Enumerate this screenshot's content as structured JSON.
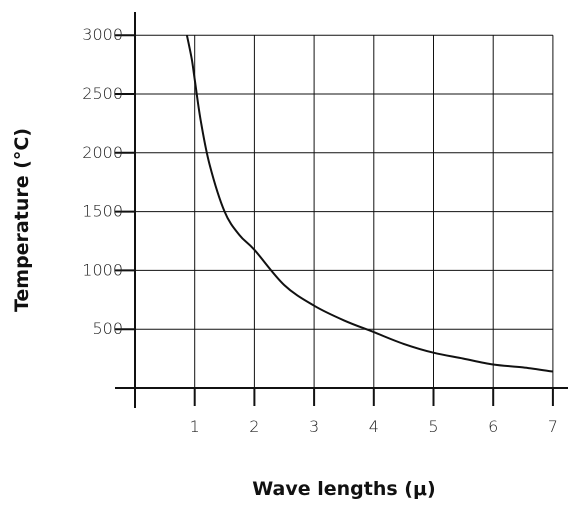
{
  "chart_data": {
    "type": "line",
    "title": "",
    "xlabel": "Wave lengths (μ)",
    "ylabel": "Temperature (°C)",
    "xlim": [
      0,
      7
    ],
    "ylim": [
      0,
      3000
    ],
    "x_ticks": [
      1,
      2,
      3,
      4,
      5,
      6,
      7
    ],
    "y_ticks": [
      500,
      1000,
      1500,
      2000,
      2500,
      3000
    ],
    "grid": true,
    "series": [
      {
        "name": "",
        "x": [
          0.87,
          0.95,
          1.0,
          1.1,
          1.25,
          1.5,
          1.75,
          2.0,
          2.5,
          3.0,
          3.5,
          4.0,
          4.5,
          5.0,
          5.5,
          6.0,
          6.5,
          7.0
        ],
        "y": [
          3000,
          2800,
          2625,
          2275,
          1900,
          1500,
          1300,
          1175,
          875,
          700,
          575,
          475,
          375,
          300,
          250,
          200,
          175,
          140
        ]
      }
    ]
  }
}
